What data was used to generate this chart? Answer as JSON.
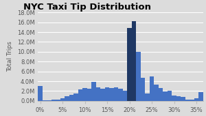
{
  "title": "NYC Taxi Tip Distribution",
  "xlabel": "",
  "ylabel": "Total Trips",
  "background_color": "#dcdcdc",
  "plot_background": "#dcdcdc",
  "bar_width": 1.0,
  "categories": [
    0,
    1,
    2,
    3,
    4,
    5,
    6,
    7,
    8,
    9,
    10,
    11,
    12,
    13,
    14,
    15,
    16,
    17,
    18,
    19,
    20,
    21,
    22,
    23,
    24,
    25,
    26,
    27,
    28,
    29,
    30,
    31,
    32,
    33,
    34,
    35,
    36
  ],
  "values": [
    3.0,
    0.1,
    0.15,
    0.2,
    0.3,
    0.5,
    1.0,
    1.2,
    1.5,
    2.3,
    2.6,
    2.5,
    3.8,
    2.8,
    2.5,
    2.8,
    2.6,
    2.7,
    2.5,
    2.0,
    14.8,
    16.3,
    10.0,
    4.7,
    1.5,
    5.0,
    3.3,
    2.6,
    1.9,
    2.0,
    1.1,
    0.9,
    0.8,
    0.3,
    0.3,
    0.5,
    1.8
  ],
  "dark_bars": [
    20,
    21
  ],
  "light_color": "#4472c4",
  "dark_color": "#1f3864",
  "ylim": [
    0,
    18
  ],
  "yticks": [
    0.0,
    2.0,
    4.0,
    6.0,
    8.0,
    10.0,
    12.0,
    14.0,
    16.0,
    18.0
  ],
  "ytick_labels": [
    "0.0M",
    "2.0M",
    "4.0M",
    "6.0M",
    "8.0M",
    "10.0M",
    "12.0M",
    "14.0M",
    "16.0M",
    "18.0M"
  ],
  "xticks": [
    0,
    5,
    10,
    15,
    20,
    25,
    30,
    35
  ],
  "xtick_labels": [
    "0%",
    "5%",
    "10%",
    "15%",
    "20%",
    "25%",
    "30%",
    "35%"
  ],
  "title_fontsize": 9.5,
  "axis_fontsize": 6,
  "ylabel_fontsize": 6.5,
  "grid_color": "#ffffff",
  "spine_color": "#bbbbbb"
}
